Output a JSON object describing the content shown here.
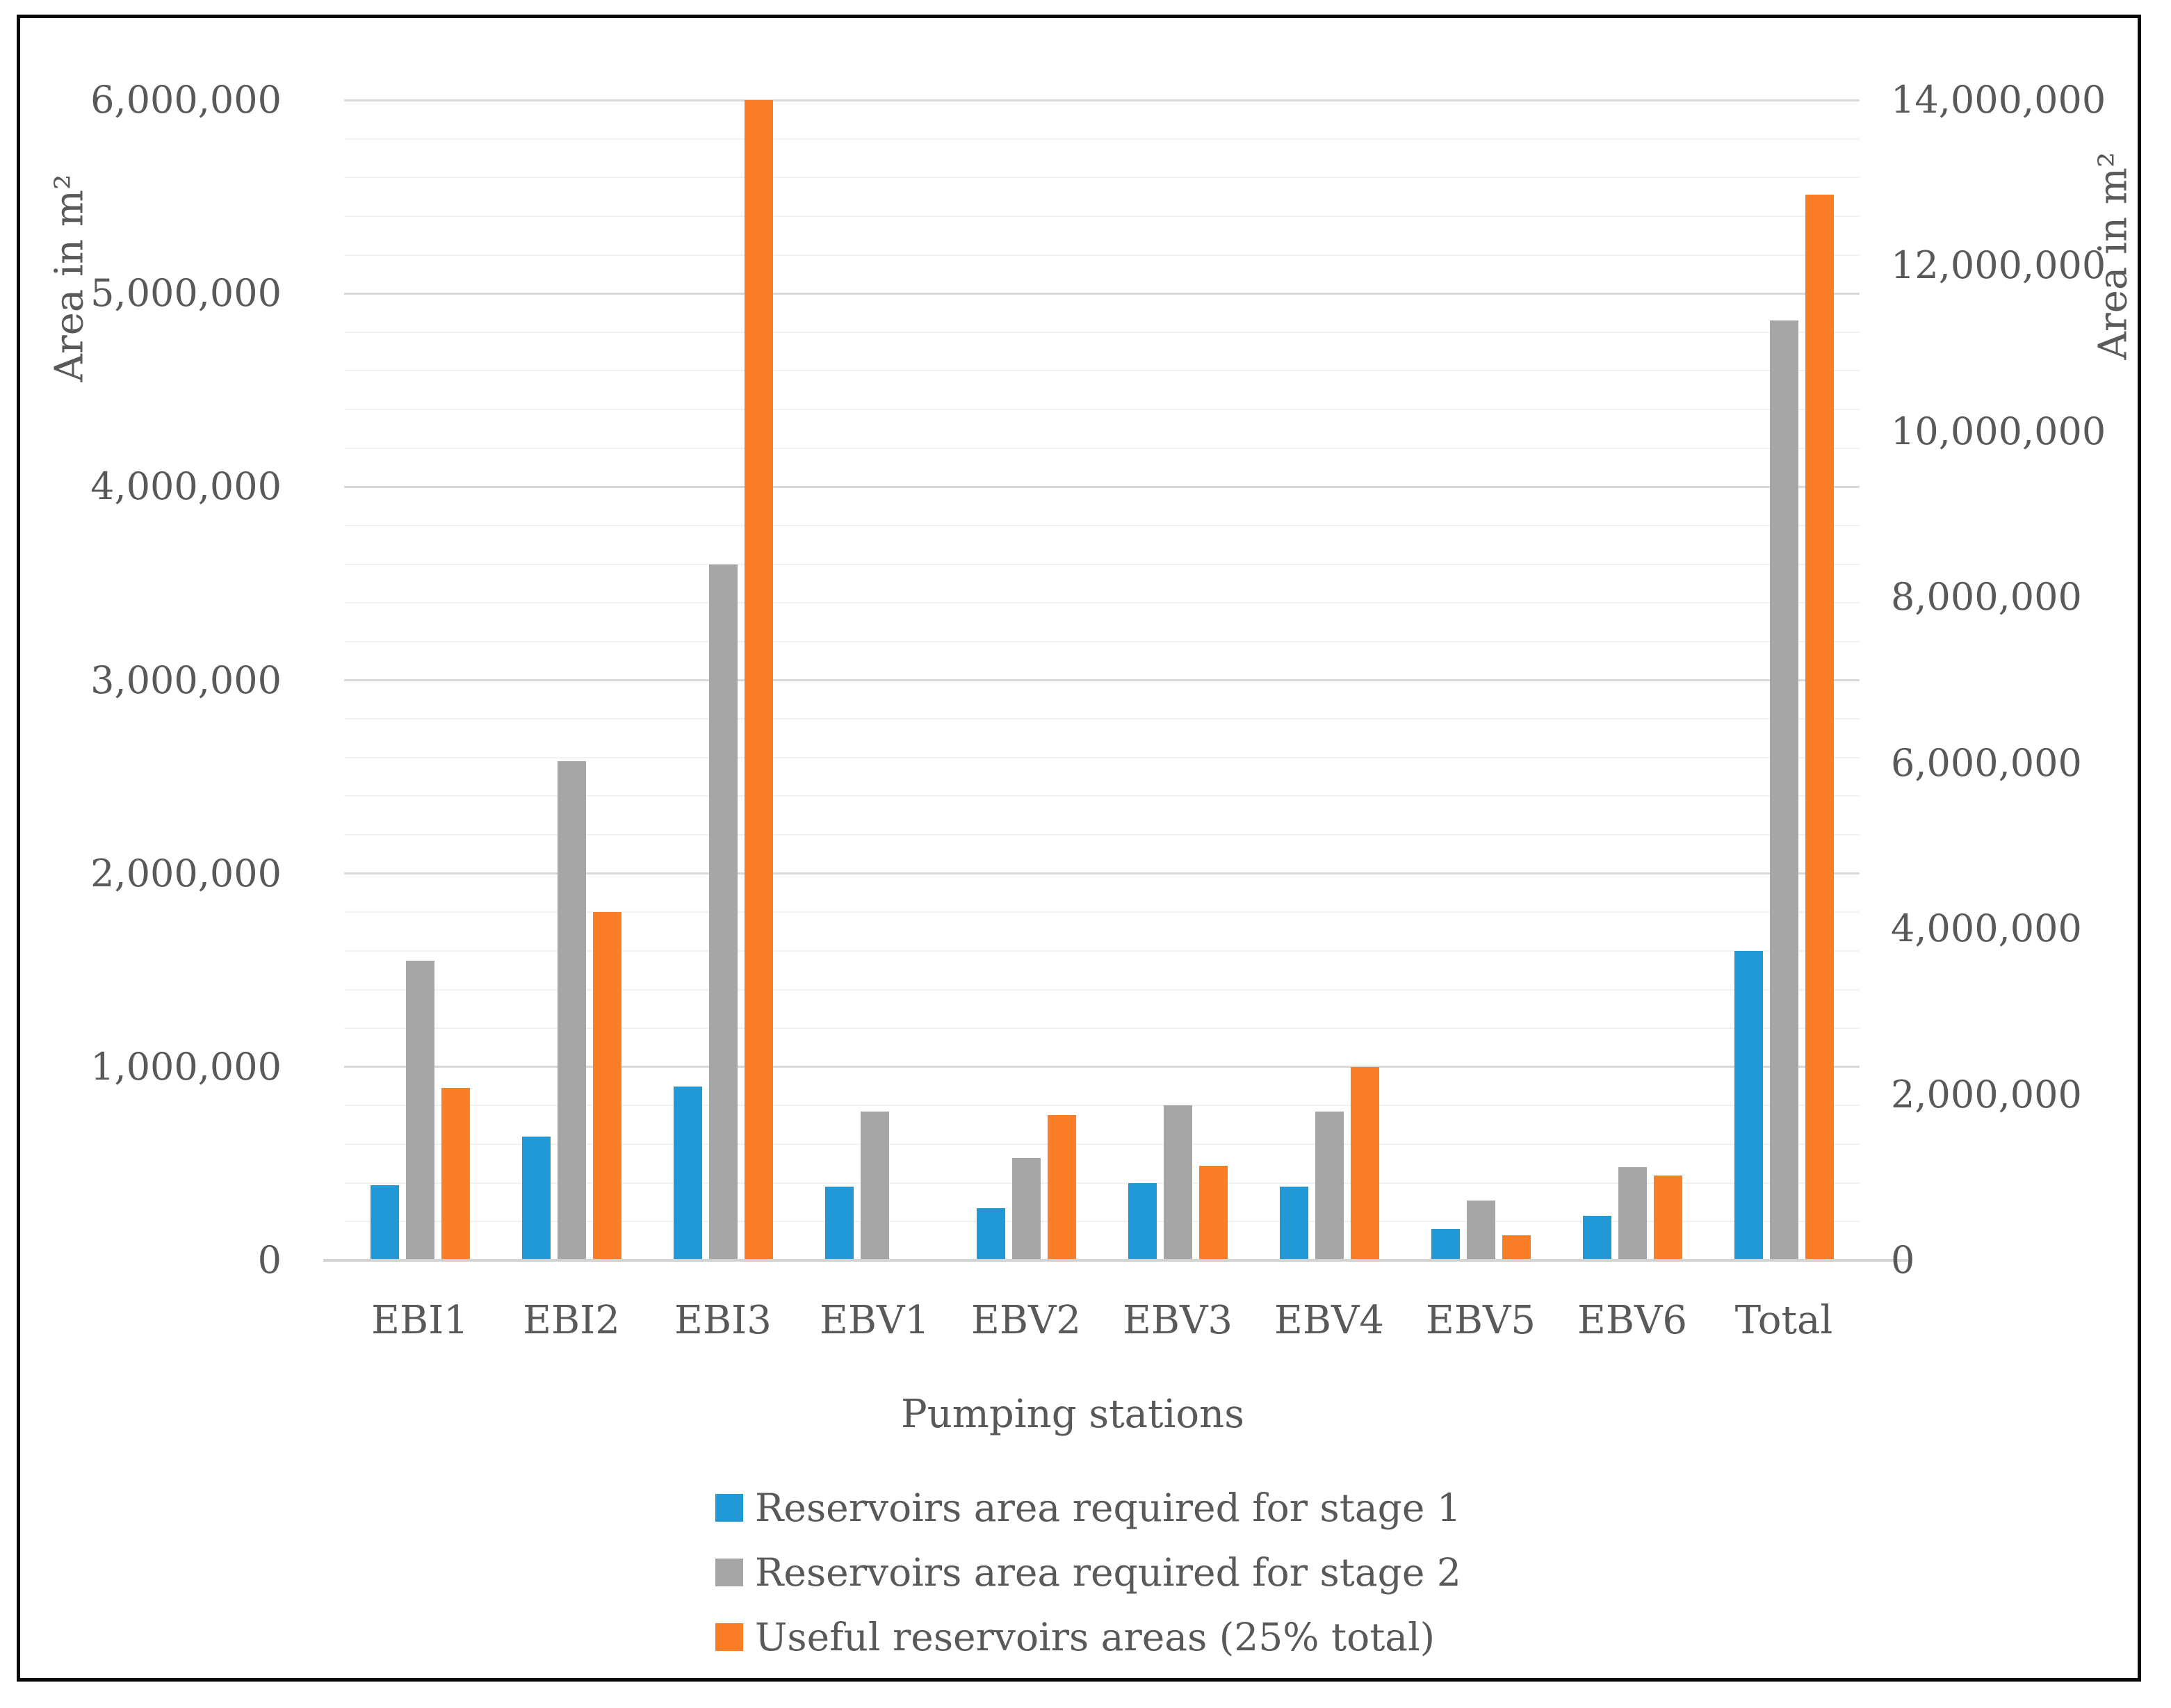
{
  "chart_data": {
    "type": "bar",
    "x_axis_title": "Pumping stations",
    "categories": [
      "EBI1",
      "EBI2",
      "EBI3",
      "EBV1",
      "EBV2",
      "EBV3",
      "EBV4",
      "EBV5",
      "EBV6",
      "Total"
    ],
    "total_category_uses_right_axis": true,
    "left_axis": {
      "title": "Area in m²",
      "min": 0,
      "max": 6000000,
      "major_tick": 1000000,
      "minor_gridline": 200000,
      "tick_labels": [
        "0",
        "1,000,000",
        "2,000,000",
        "3,000,000",
        "4,000,000",
        "5,000,000",
        "6,000,000"
      ]
    },
    "right_axis": {
      "title": "Area in m²",
      "min": 0,
      "max": 14000000,
      "major_tick": 2000000,
      "tick_labels": [
        "0",
        "2,000,000",
        "4,000,000",
        "6,000,000",
        "8,000,000",
        "10,000,000",
        "12,000,000",
        "14,000,000"
      ]
    },
    "series": [
      {
        "name": "Reservoirs area required for stage 1",
        "color": "#2099D6",
        "values": [
          390000,
          640000,
          900000,
          380000,
          270000,
          400000,
          380000,
          160000,
          230000,
          3730000
        ]
      },
      {
        "name": "Reservoirs area required for stage 2",
        "color": "#A6A6A6",
        "values": [
          1550000,
          2580000,
          3600000,
          770000,
          530000,
          800000,
          770000,
          310000,
          480000,
          11340000
        ]
      },
      {
        "name": "Useful reservoirs areas  (25% total)",
        "color": "#FA7E28",
        "values": [
          890000,
          1800000,
          6000000,
          0,
          750000,
          490000,
          1000000,
          130000,
          440000,
          12860000
        ]
      }
    ],
    "legend_position": "bottom",
    "grid": true,
    "text_color": "#595959"
  }
}
